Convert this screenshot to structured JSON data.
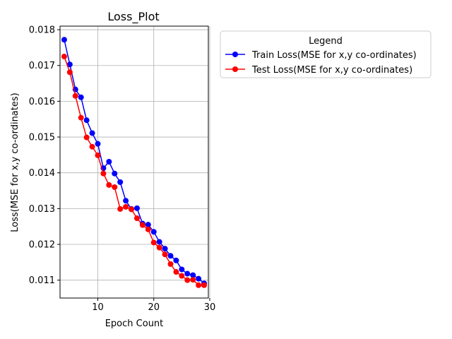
{
  "chart_data": {
    "type": "line",
    "title": "Loss_Plot",
    "xlabel": "Epoch Count",
    "ylabel": "Loss(MSE for x,y co-ordinates)",
    "xlim": [
      3.25,
      29.75
    ],
    "ylim": [
      0.0105,
      0.0181
    ],
    "xticks": [
      10,
      20,
      30
    ],
    "yticks": [
      0.011,
      0.012,
      0.013,
      0.014,
      0.015,
      0.016,
      0.017,
      0.018
    ],
    "grid": true,
    "legend_title": "Legend",
    "legend_position": "outside-top-right",
    "x": [
      4,
      5,
      6,
      7,
      8,
      9,
      10,
      11,
      12,
      13,
      14,
      15,
      16,
      17,
      18,
      19,
      20,
      21,
      22,
      23,
      24,
      25,
      26,
      27,
      28,
      29
    ],
    "series": [
      {
        "name": "Train Loss(MSE for x,y co-ordinates)",
        "color": "#0000ff",
        "marker": "circle",
        "values": [
          0.01772,
          0.01703,
          0.01633,
          0.01611,
          0.01547,
          0.01511,
          0.01481,
          0.01413,
          0.01431,
          0.01398,
          0.01374,
          0.01322,
          0.01299,
          0.01301,
          0.01258,
          0.01255,
          0.01235,
          0.01207,
          0.01188,
          0.01168,
          0.01155,
          0.0113,
          0.01118,
          0.01114,
          0.01104,
          0.01091
        ]
      },
      {
        "name": "Test Loss(MSE for x,y co-ordinates)",
        "color": "#ff0000",
        "marker": "circle",
        "values": [
          0.01725,
          0.01681,
          0.01615,
          0.01554,
          0.01499,
          0.01473,
          0.01449,
          0.01398,
          0.01366,
          0.0136,
          0.01299,
          0.01305,
          0.01298,
          0.01273,
          0.01254,
          0.01242,
          0.01205,
          0.01191,
          0.01172,
          0.01145,
          0.01123,
          0.01112,
          0.011,
          0.01101,
          0.01086,
          0.01086
        ]
      }
    ]
  }
}
